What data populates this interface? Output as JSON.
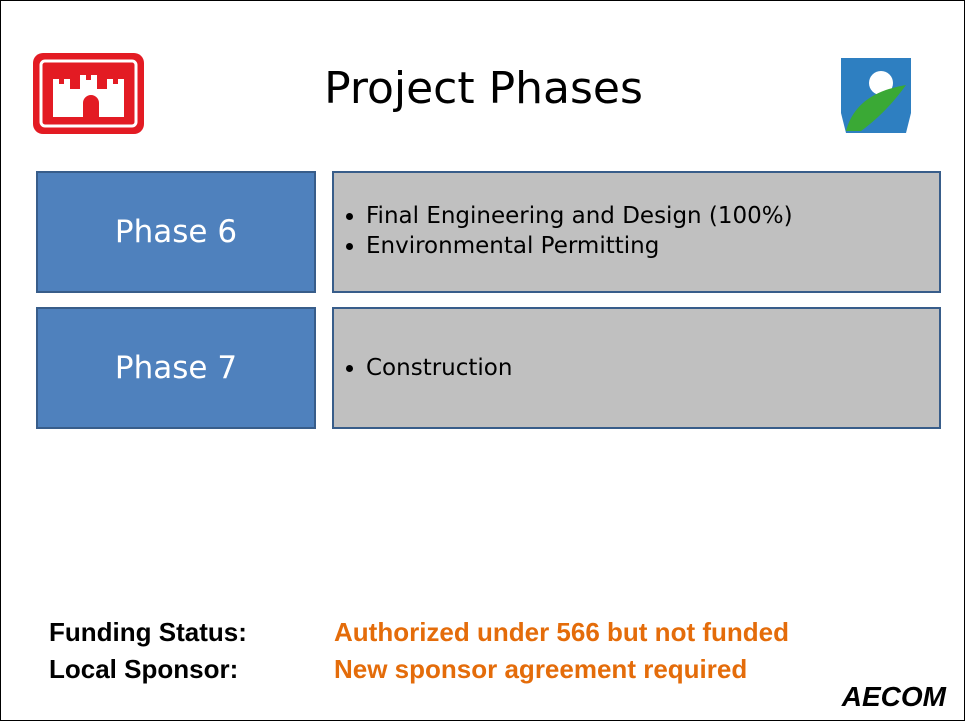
{
  "header": {
    "title": "Project Phases"
  },
  "phases": [
    {
      "label": "Phase 6",
      "items": [
        "Final Engineering and Design (100%)",
        "Environmental Permitting"
      ]
    },
    {
      "label": "Phase 7",
      "items": [
        "Construction"
      ]
    }
  ],
  "status": [
    {
      "label": "Funding Status:",
      "value": "Authorized under 566 but not funded"
    },
    {
      "label": "Local Sponsor:",
      "value": "New sponsor agreement required"
    }
  ],
  "footer": {
    "logo": "AECOM"
  }
}
